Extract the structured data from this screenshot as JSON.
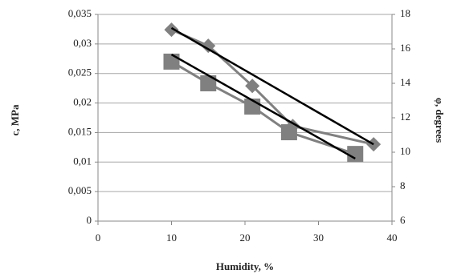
{
  "chart_data": {
    "type": "line",
    "x_label": "Humidity, %",
    "y_label": "c, MPa",
    "y2_label": "φ, degrees",
    "xlim": [
      0,
      40
    ],
    "xticks": [
      0,
      10,
      20,
      30,
      40
    ],
    "ylim": [
      0,
      0.035
    ],
    "yticks": [
      0,
      {
        "value": 0.005,
        "label": "0,005"
      },
      {
        "value": 0.01,
        "label": "0,01"
      },
      {
        "value": 0.015,
        "label": "0,015"
      },
      {
        "value": 0.02,
        "label": "0,02"
      },
      {
        "value": 0.025,
        "label": "0,025"
      },
      {
        "value": 0.03,
        "label": "0,03"
      },
      {
        "value": 0.035,
        "label": "0,035"
      }
    ],
    "y2lim": [
      6,
      18
    ],
    "y2ticks": [
      6,
      8,
      10,
      12,
      14,
      16,
      18
    ],
    "grid": true,
    "series": [
      {
        "color": "#808080",
        "marker": "diamond",
        "x": [
          10,
          15,
          21,
          26.5,
          37.5
        ],
        "values": [
          0.0324,
          0.0297,
          0.0229,
          0.0161,
          0.013
        ]
      },
      {
        "color": "#808080",
        "marker": "square",
        "axis": "y2",
        "x": [
          10,
          15,
          21,
          26,
          35
        ],
        "values": [
          15.26,
          14.0,
          12.65,
          11.16,
          9.9
        ]
      }
    ],
    "trendlines": [
      {
        "color": "#000000",
        "x": [
          10,
          37.5
        ],
        "values": [
          0.0327,
          0.013
        ]
      },
      {
        "color": "#000000",
        "axis": "y2",
        "x": [
          10,
          35
        ],
        "values": [
          15.67,
          9.63
        ]
      }
    ]
  }
}
